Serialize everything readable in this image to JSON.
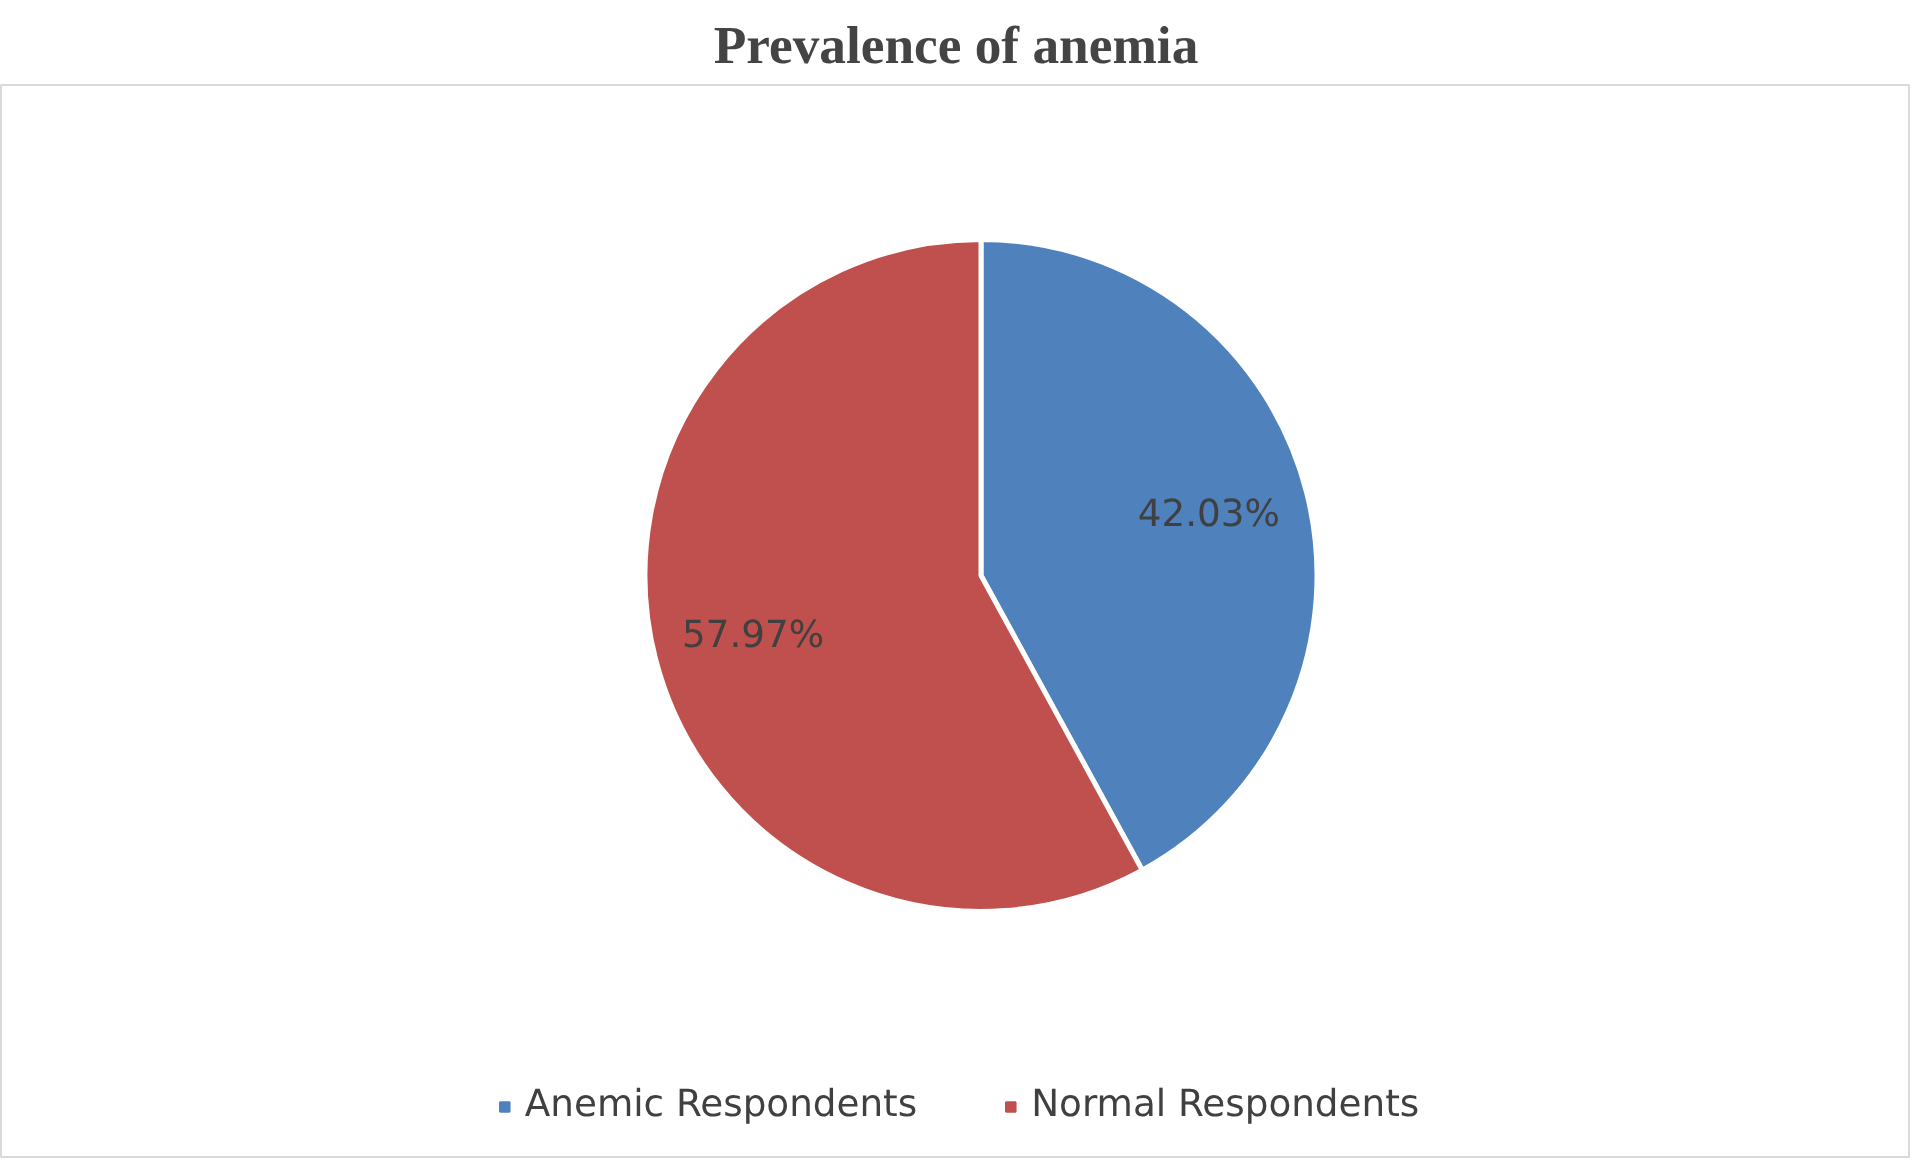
{
  "chart_data": {
    "type": "pie",
    "title": "Prevalence of anemia",
    "categories": [
      "Anemic Respondents",
      "Normal Respondents"
    ],
    "values": [
      42.03,
      57.97
    ],
    "colors": [
      "#4f81bd",
      "#c0504d"
    ],
    "value_labels": [
      "42.03%",
      "57.97%"
    ],
    "legend": "bottom"
  }
}
